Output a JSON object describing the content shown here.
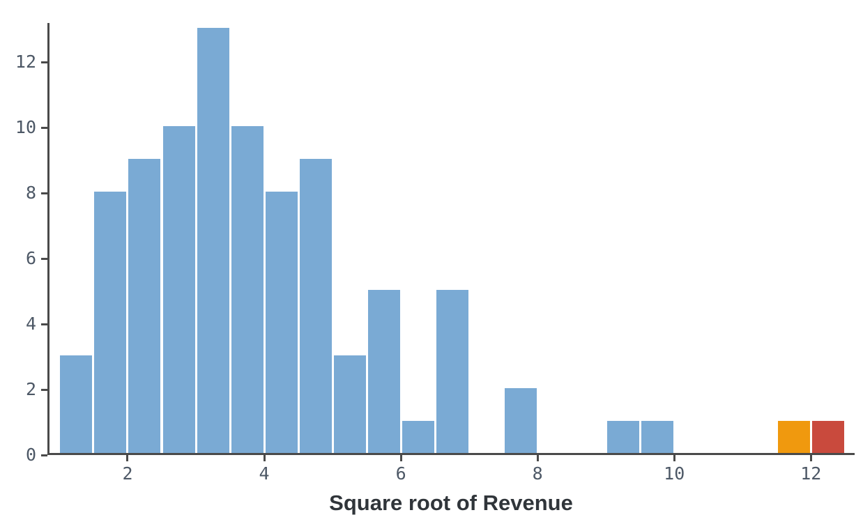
{
  "chart_data": {
    "type": "bar",
    "subtype": "histogram",
    "title": "",
    "xlabel": "Square root of Revenue",
    "ylabel": "",
    "x_domain": [
      0.827,
      12.64
    ],
    "y_domain": [
      0,
      13.2
    ],
    "x_ticks": [
      2,
      4,
      6,
      8,
      10,
      12
    ],
    "y_ticks": [
      0,
      2,
      4,
      6,
      8,
      10,
      12
    ],
    "bin_width": 0.5,
    "bins": [
      {
        "x0": 1.0,
        "count": 3,
        "color": "blue"
      },
      {
        "x0": 1.5,
        "count": 8,
        "color": "blue"
      },
      {
        "x0": 2.0,
        "count": 9,
        "color": "blue"
      },
      {
        "x0": 2.5,
        "count": 10,
        "color": "blue"
      },
      {
        "x0": 3.0,
        "count": 13,
        "color": "blue"
      },
      {
        "x0": 3.5,
        "count": 10,
        "color": "blue"
      },
      {
        "x0": 4.0,
        "count": 8,
        "color": "blue"
      },
      {
        "x0": 4.5,
        "count": 9,
        "color": "blue"
      },
      {
        "x0": 5.0,
        "count": 3,
        "color": "blue"
      },
      {
        "x0": 5.5,
        "count": 5,
        "color": "blue"
      },
      {
        "x0": 6.0,
        "count": 1,
        "color": "blue"
      },
      {
        "x0": 6.5,
        "count": 5,
        "color": "blue"
      },
      {
        "x0": 7.5,
        "count": 2,
        "color": "blue"
      },
      {
        "x0": 9.0,
        "count": 1,
        "color": "blue"
      },
      {
        "x0": 9.5,
        "count": 1,
        "color": "blue"
      },
      {
        "x0": 11.5,
        "count": 1,
        "color": "orange"
      },
      {
        "x0": 12.0,
        "count": 1,
        "color": "red"
      }
    ],
    "colors": {
      "blue": "#7aaad4",
      "orange": "#f0990e",
      "red": "#c94a3d"
    },
    "axis_color": "#4a4a4a",
    "tick_label_color": "#4d5866",
    "title_color": "#30353a",
    "legend": null,
    "grid": false
  }
}
